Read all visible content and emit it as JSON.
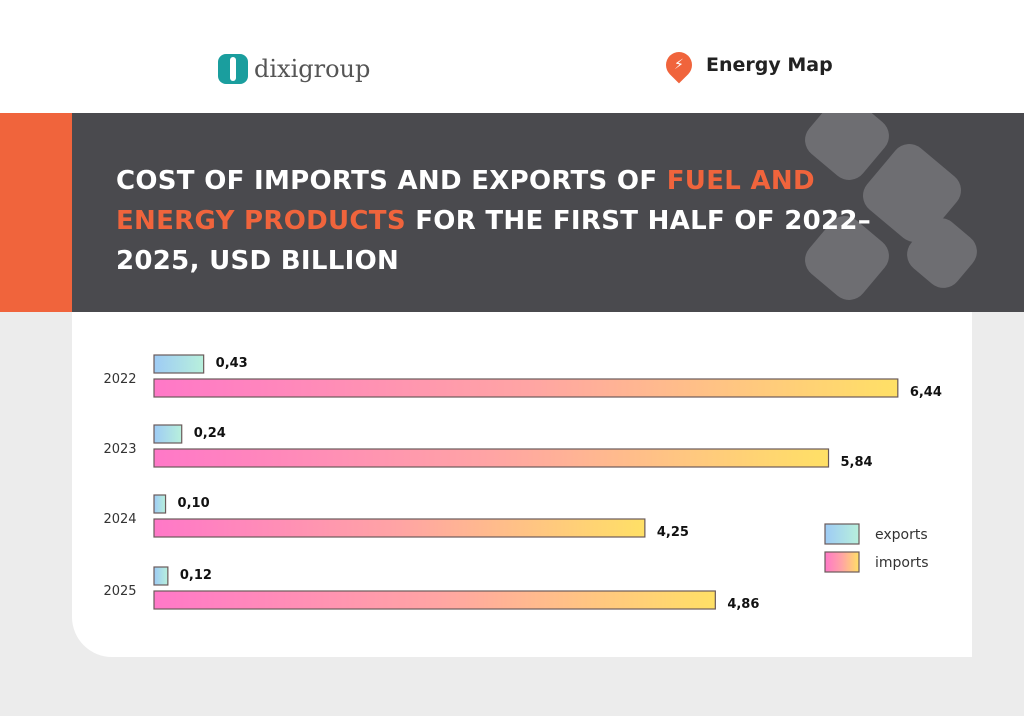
{
  "header": {
    "logo_left": "dixigroup",
    "logo_right": "Energy Map"
  },
  "title": {
    "part1": "COST OF IMPORTS AND EXPORTS OF ",
    "highlight": "FUEL AND ENERGY PRODUCTS",
    "part2": " FOR THE FIRST HALF OF 2022–2025, USD BILLION"
  },
  "chart_data": {
    "type": "bar",
    "orientation": "horizontal",
    "title": "COST OF IMPORTS AND EXPORTS OF FUEL AND ENERGY PRODUCTS FOR THE FIRST HALF OF 2022–2025, USD BILLION",
    "categories": [
      "2022",
      "2023",
      "2024",
      "2025"
    ],
    "series": [
      {
        "name": "exports",
        "values": [
          0.43,
          0.24,
          0.1,
          0.12
        ],
        "labels": [
          "0,43",
          "0,24",
          "0,10",
          "0,12"
        ],
        "colors": [
          "#9ecbf5",
          "#b8f0dc"
        ]
      },
      {
        "name": "imports",
        "values": [
          6.44,
          5.84,
          4.25,
          4.86
        ],
        "labels": [
          "6,44",
          "5,84",
          "4,25",
          "4,86"
        ],
        "colors": [
          "#ff78c8",
          "#ffe066"
        ]
      }
    ],
    "legend": "right"
  },
  "colors": {
    "accent": "#f0643c",
    "band": "#4a4a4e",
    "teal": "#1a9e9e"
  }
}
